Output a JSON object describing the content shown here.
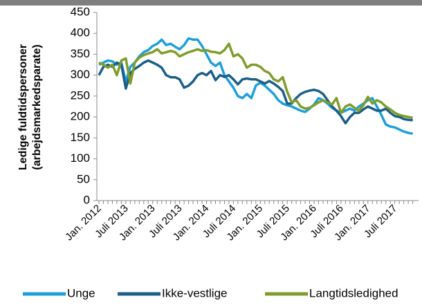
{
  "chart_data": {
    "type": "line",
    "ylabel": [
      "Ledige fuldtidspersoner",
      "(arbejdsmarkedsparate)"
    ],
    "categories": [
      "Jan. 2012",
      null,
      null,
      null,
      null,
      null,
      "Juli 2013",
      null,
      null,
      null,
      null,
      null,
      "Jan. 2013",
      null,
      null,
      null,
      null,
      null,
      "Juli 2013",
      null,
      null,
      null,
      null,
      null,
      "Jan. 2014",
      null,
      null,
      null,
      null,
      null,
      "Juli 2014",
      null,
      null,
      null,
      null,
      null,
      "Jan. 2015",
      null,
      null,
      null,
      null,
      null,
      "Juli 2015",
      null,
      null,
      null,
      null,
      null,
      "Jan. 2016",
      null,
      null,
      null,
      null,
      null,
      "Juli 2016",
      null,
      null,
      null,
      null,
      null,
      "Jan. 2017",
      null,
      null,
      null,
      null,
      null,
      "Juli 2017",
      null,
      null,
      null,
      null
    ],
    "series": [
      {
        "name": "Unge",
        "color": "#1e9fd8",
        "values": [
          325,
          330,
          335,
          333,
          325,
          330,
          285,
          320,
          330,
          345,
          355,
          360,
          370,
          375,
          385,
          372,
          375,
          368,
          362,
          372,
          388,
          385,
          385,
          370,
          350,
          330,
          322,
          330,
          300,
          285,
          270,
          250,
          245,
          255,
          245,
          275,
          282,
          275,
          265,
          255,
          240,
          232,
          228,
          225,
          220,
          215,
          212,
          220,
          230,
          245,
          240,
          232,
          222,
          215,
          210,
          215,
          220,
          215,
          225,
          232,
          240,
          245,
          225,
          205,
          182,
          177,
          175,
          170,
          165,
          162,
          160
        ]
      },
      {
        "name": "Ikke-vestlige",
        "color": "#1b5e86",
        "values": [
          300,
          320,
          325,
          320,
          330,
          325,
          268,
          305,
          315,
          322,
          330,
          335,
          330,
          325,
          318,
          300,
          295,
          295,
          290,
          270,
          275,
          285,
          300,
          305,
          300,
          310,
          288,
          300,
          296,
          300,
          290,
          278,
          290,
          292,
          290,
          290,
          285,
          280,
          286,
          280,
          272,
          262,
          232,
          232,
          245,
          255,
          260,
          263,
          265,
          262,
          255,
          240,
          225,
          215,
          202,
          185,
          200,
          210,
          210,
          218,
          225,
          220,
          215,
          215,
          220,
          210,
          202,
          200,
          195,
          193,
          192
        ]
      },
      {
        "name": "Langtidsledighed",
        "color": "#7f9c2c",
        "values": [
          330,
          325,
          318,
          325,
          300,
          335,
          340,
          280,
          330,
          342,
          348,
          352,
          355,
          362,
          352,
          355,
          358,
          355,
          345,
          350,
          355,
          358,
          362,
          358,
          360,
          356,
          355,
          352,
          360,
          375,
          345,
          350,
          340,
          318,
          325,
          325,
          320,
          310,
          305,
          290,
          285,
          295,
          260,
          235,
          240,
          225,
          220,
          222,
          228,
          235,
          240,
          235,
          230,
          245,
          210,
          225,
          230,
          222,
          215,
          228,
          248,
          232,
          240,
          235,
          225,
          218,
          210,
          205,
          202,
          200,
          198
        ]
      }
    ],
    "ylim": [
      0,
      450
    ],
    "yticks": [
      0,
      50,
      100,
      150,
      200,
      250,
      300,
      350,
      400,
      450
    ],
    "legend": "bottom"
  }
}
